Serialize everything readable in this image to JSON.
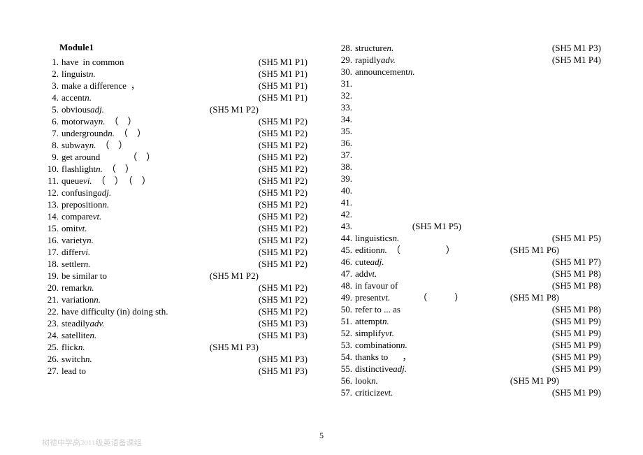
{
  "module_title": "Module1",
  "page_number": "5",
  "watermark": "树德中学高2011级英语备课组",
  "col1": [
    {
      "n": "1.",
      "t": "have",
      "e": "in common",
      "r": "(SH5 M1 P1)"
    },
    {
      "n": "2.",
      "t": "linguist ",
      "p": "n.",
      "r": "(SH5 M1 P1)"
    },
    {
      "n": "3.",
      "t": "make a difference",
      "e": "，",
      "r": "(SH5 M1 P1)"
    },
    {
      "n": "4.",
      "t": "accent ",
      "p": "n.",
      "r": "(SH5 M1 P1)"
    },
    {
      "n": "5.",
      "t": "obvious ",
      "p": "adj.",
      "r": "(SH5 M1 P2)",
      "rshift": -40
    },
    {
      "n": "6.",
      "t": "motorway ",
      "p": "n.",
      "e": "（　）",
      "r": "(SH5 M1 P2)"
    },
    {
      "n": "7.",
      "t": "underground ",
      "p": "n.",
      "e": "（　）",
      "r": "(SH5 M1 P2)"
    },
    {
      "n": "8.",
      "t": "subway ",
      "p": "n.",
      "e": "（　）",
      "r": "(SH5 M1 P2)"
    },
    {
      "n": "9.",
      "t": "get around",
      "e": "（　）",
      "r": "(SH5 M1 P2)",
      "espace": 40
    },
    {
      "n": "10.",
      "t": "flashlight ",
      "p": "n.",
      "e": "（　）",
      "r": "(SH5 M1 P2)"
    },
    {
      "n": "11.",
      "t": "queue ",
      "p": "vi.",
      "e": "（　）　（　）",
      "r": "(SH5 M1 P2)"
    },
    {
      "n": "12.",
      "t": "confusing ",
      "p": "adj.",
      "r": "(SH5 M1 P2)"
    },
    {
      "n": "13.",
      "t": "preposition ",
      "p": "n.",
      "r": "(SH5 M1 P2)"
    },
    {
      "n": "14.",
      "t": "compare ",
      "p": "vt.",
      "r": "(SH5 M1 P2)"
    },
    {
      "n": "15.",
      "t": "omit ",
      "p": "vt.",
      "r": "(SH5 M1 P2)"
    },
    {
      "n": "16.",
      "t": "variety ",
      "p": "n.",
      "r": "(SH5 M1 P2)"
    },
    {
      "n": "17.",
      "t": "differ ",
      "p": "vi.",
      "r": "(SH5 M1 P2)"
    },
    {
      "n": "18.",
      "t": "settler ",
      "p": "n.",
      "r": "(SH5 M1 P2)"
    },
    {
      "n": "19.",
      "t": "be similar to",
      "r": "(SH5 M1 P2)",
      "rshift": -40
    },
    {
      "n": "20.",
      "t": "remark ",
      "p": "n.",
      "r": "(SH5 M1 P2)"
    },
    {
      "n": "21.",
      "t": "variation ",
      "p": "n.",
      "r": "(SH5 M1 P2)"
    },
    {
      "n": "22.",
      "t": "have difficulty (in) doing sth.",
      "r": "(SH5 M1 P2)"
    },
    {
      "n": "23.",
      "t": "steadily ",
      "p": "adv.",
      "r": "(SH5 M1 P3)"
    },
    {
      "n": "24.",
      "t": "satellite ",
      "p": "n.",
      "r": "(SH5 M1 P3)"
    },
    {
      "n": "25.",
      "t": "flick ",
      "p": "n.",
      "r": "(SH5 M1 P3)",
      "rshift": -40
    },
    {
      "n": "26.",
      "t": "switch ",
      "p": "n.",
      "r": "(SH5 M1 P3)"
    },
    {
      "n": "27.",
      "t": "lead to",
      "r": "(SH5 M1 P3)"
    }
  ],
  "col2": [
    {
      "n": "28.",
      "t": "structure ",
      "p": "n.",
      "r": "(SH5 M1 P3)"
    },
    {
      "n": "29.",
      "t": "rapidly ",
      "p": "adv.",
      "r": "(SH5 M1 P4)"
    },
    {
      "n": "30.",
      "t": "announcement ",
      "p": "n."
    },
    {
      "n": "31."
    },
    {
      "n": "32."
    },
    {
      "n": "33."
    },
    {
      "n": "34."
    },
    {
      "n": "35."
    },
    {
      "n": "36."
    },
    {
      "n": "37."
    },
    {
      "n": "38."
    },
    {
      "n": "39."
    },
    {
      "n": "40."
    },
    {
      "n": "41."
    },
    {
      "n": "42."
    },
    {
      "n": "43.",
      "r": "(SH5 M1 P5)",
      "rshift": -170
    },
    {
      "n": "44.",
      "t": "linguistics ",
      "p": "n.",
      "r": "(SH5 M1 P5)"
    },
    {
      "n": "45.",
      "t": "edition ",
      "p": "n.",
      "e": "（　　　　　）",
      "r": "(SH5 M1 P6)",
      "rshift": -30
    },
    {
      "n": "46.",
      "t": "cute ",
      "p": "adj.",
      "r": "(SH5 M1 P7)"
    },
    {
      "n": "47.",
      "t": "add ",
      "p": "vt.",
      "r": "(SH5 M1 P8)"
    },
    {
      "n": "48.",
      "t": "in favour of",
      "r": "(SH5 M1 P8)"
    },
    {
      "n": "49.",
      "t": "present ",
      "p": "vt.",
      "e": "（　　　）",
      "r": "(SH5 M1 P8)",
      "rshift": -30,
      "espace": 40
    },
    {
      "n": "50.",
      "t": "refer to ... as",
      "r": "(SH5 M1 P8)"
    },
    {
      "n": "51.",
      "t": "attempt ",
      "p": "n.",
      "r": "(SH5 M1 P9)"
    },
    {
      "n": "52.",
      "t": "simplify ",
      "p": "vt.",
      "r": "(SH5 M1 P9)"
    },
    {
      "n": "53.",
      "t": "combination ",
      "p": "n.",
      "r": "(SH5 M1 P9)"
    },
    {
      "n": "54.",
      "t": "thanks to",
      "e": "，",
      "r": "(SH5 M1 P9)",
      "espace": 20
    },
    {
      "n": "55.",
      "t": "distinctive ",
      "p": "adj.",
      "r": "(SH5 M1 P9)"
    },
    {
      "n": "56.",
      "t": "look ",
      "p": "n.",
      "r": "(SH5 M1 P9)",
      "rshift": -30
    },
    {
      "n": "57.",
      "t": "criticize ",
      "p": "vt.",
      "r": "(SH5 M1 P9)"
    }
  ]
}
